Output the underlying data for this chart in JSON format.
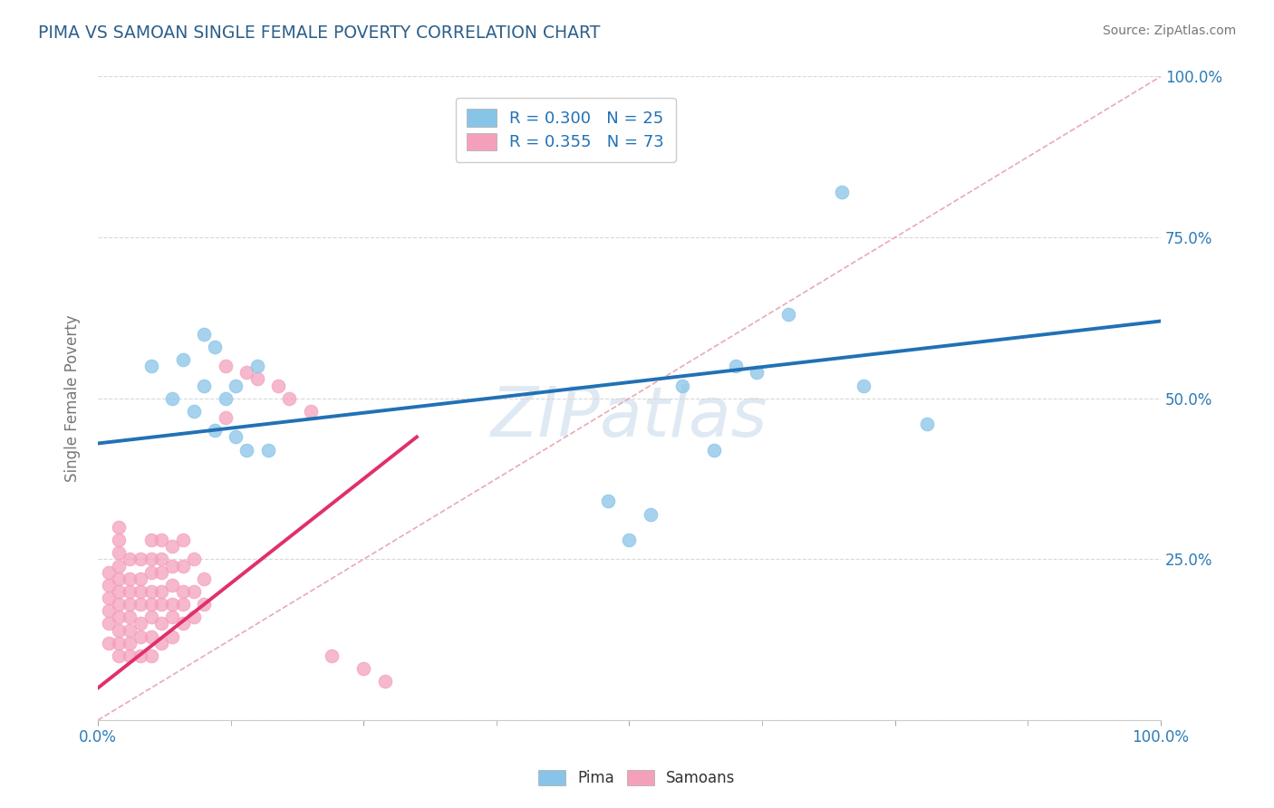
{
  "title": "PIMA VS SAMOAN SINGLE FEMALE POVERTY CORRELATION CHART",
  "source": "Source: ZipAtlas.com",
  "ylabel": "Single Female Poverty",
  "xlim": [
    0,
    1
  ],
  "ylim": [
    0,
    1
  ],
  "pima_color": "#88c4e8",
  "samoan_color": "#f4a0bb",
  "pima_line_color": "#2171b5",
  "samoan_line_color": "#e0306a",
  "diagonal_color": "#e8a0b0",
  "watermark": "ZIPatlas",
  "pima_R": 0.3,
  "pima_N": 25,
  "samoan_R": 0.355,
  "samoan_N": 73,
  "pima_scatter_x": [
    0.05,
    0.07,
    0.08,
    0.09,
    0.1,
    0.1,
    0.11,
    0.11,
    0.12,
    0.13,
    0.13,
    0.14,
    0.15,
    0.16,
    0.48,
    0.5,
    0.52,
    0.55,
    0.58,
    0.6,
    0.62,
    0.65,
    0.7,
    0.72,
    0.78
  ],
  "pima_scatter_y": [
    0.55,
    0.5,
    0.56,
    0.48,
    0.52,
    0.6,
    0.45,
    0.58,
    0.5,
    0.44,
    0.52,
    0.42,
    0.55,
    0.42,
    0.34,
    0.28,
    0.32,
    0.52,
    0.42,
    0.55,
    0.54,
    0.63,
    0.82,
    0.52,
    0.46
  ],
  "samoan_scatter_x": [
    0.01,
    0.01,
    0.01,
    0.01,
    0.01,
    0.01,
    0.02,
    0.02,
    0.02,
    0.02,
    0.02,
    0.02,
    0.02,
    0.02,
    0.02,
    0.02,
    0.02,
    0.03,
    0.03,
    0.03,
    0.03,
    0.03,
    0.03,
    0.03,
    0.03,
    0.04,
    0.04,
    0.04,
    0.04,
    0.04,
    0.04,
    0.04,
    0.05,
    0.05,
    0.05,
    0.05,
    0.05,
    0.05,
    0.05,
    0.05,
    0.06,
    0.06,
    0.06,
    0.06,
    0.06,
    0.06,
    0.06,
    0.07,
    0.07,
    0.07,
    0.07,
    0.07,
    0.07,
    0.08,
    0.08,
    0.08,
    0.08,
    0.08,
    0.09,
    0.09,
    0.09,
    0.1,
    0.1,
    0.12,
    0.12,
    0.14,
    0.15,
    0.17,
    0.18,
    0.2,
    0.22,
    0.25,
    0.27
  ],
  "samoan_scatter_y": [
    0.12,
    0.15,
    0.17,
    0.19,
    0.21,
    0.23,
    0.1,
    0.12,
    0.14,
    0.16,
    0.18,
    0.2,
    0.22,
    0.24,
    0.26,
    0.28,
    0.3,
    0.1,
    0.12,
    0.14,
    0.16,
    0.18,
    0.2,
    0.22,
    0.25,
    0.1,
    0.13,
    0.15,
    0.18,
    0.2,
    0.22,
    0.25,
    0.1,
    0.13,
    0.16,
    0.18,
    0.2,
    0.23,
    0.25,
    0.28,
    0.12,
    0.15,
    0.18,
    0.2,
    0.23,
    0.25,
    0.28,
    0.13,
    0.16,
    0.18,
    0.21,
    0.24,
    0.27,
    0.15,
    0.18,
    0.2,
    0.24,
    0.28,
    0.16,
    0.2,
    0.25,
    0.18,
    0.22,
    0.47,
    0.55,
    0.54,
    0.53,
    0.52,
    0.5,
    0.48,
    0.1,
    0.08,
    0.06
  ],
  "pima_line_x": [
    0.0,
    1.0
  ],
  "pima_line_y": [
    0.43,
    0.62
  ],
  "samoan_line_x": [
    0.0,
    0.3
  ],
  "samoan_line_y": [
    0.05,
    0.44
  ],
  "diag_line_x": [
    0.0,
    1.0
  ],
  "diag_line_y": [
    0.0,
    1.0
  ],
  "background_color": "#ffffff",
  "grid_color": "#d8d8d8",
  "title_color": "#2c5f8a",
  "axis_label_color": "#777777",
  "tick_color": "#2c7bb6",
  "legend_r_color": "#2171b5"
}
